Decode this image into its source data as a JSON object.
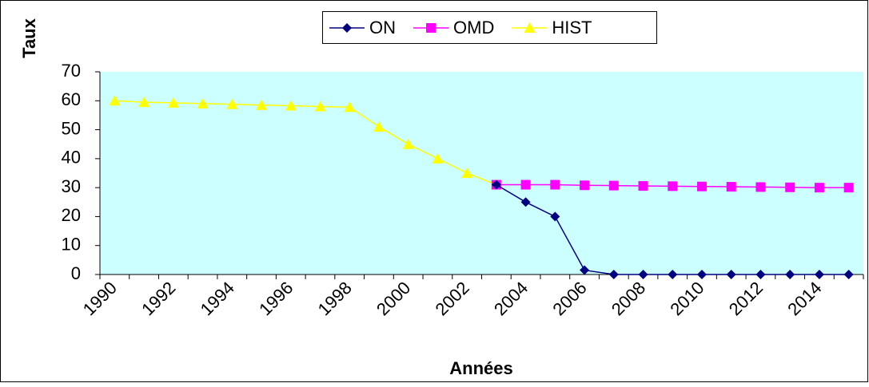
{
  "chart_data": {
    "type": "line",
    "xlabel": "Années",
    "ylabel": "Taux",
    "categories": [
      "1990",
      null,
      "1992",
      null,
      "1994",
      null,
      "1996",
      null,
      "1998",
      null,
      "2000",
      null,
      "2002",
      null,
      "2004",
      null,
      "2006",
      null,
      "2008",
      null,
      "2010",
      null,
      "2012",
      null,
      "2014",
      null
    ],
    "series": [
      {
        "name": "ON",
        "color": "#000080",
        "marker": "diamond",
        "values": [
          null,
          null,
          null,
          null,
          null,
          null,
          null,
          null,
          null,
          null,
          null,
          null,
          null,
          31,
          25,
          20,
          1.5,
          0,
          0,
          0,
          0,
          0,
          0,
          0,
          0,
          0
        ]
      },
      {
        "name": "OMD",
        "color": "#ff00ff",
        "marker": "square",
        "values": [
          null,
          null,
          null,
          null,
          null,
          null,
          null,
          null,
          null,
          null,
          null,
          null,
          null,
          31,
          31,
          31,
          30.8,
          30.7,
          30.6,
          30.5,
          30.4,
          30.3,
          30.2,
          30.1,
          30,
          30
        ]
      },
      {
        "name": "HIST",
        "color": "#ffff00",
        "marker": "triangle",
        "values": [
          60,
          59.5,
          59.3,
          59,
          58.8,
          58.5,
          58.3,
          58,
          57.8,
          51,
          45,
          40,
          35,
          31,
          null,
          null,
          null,
          null,
          null,
          null,
          null,
          null,
          null,
          null,
          null,
          null
        ]
      }
    ],
    "ylim": [
      0,
      70
    ],
    "yticks": [
      0,
      10,
      20,
      30,
      40,
      50,
      60,
      70
    ],
    "plot_background": "#ccffff",
    "legend": "top"
  }
}
